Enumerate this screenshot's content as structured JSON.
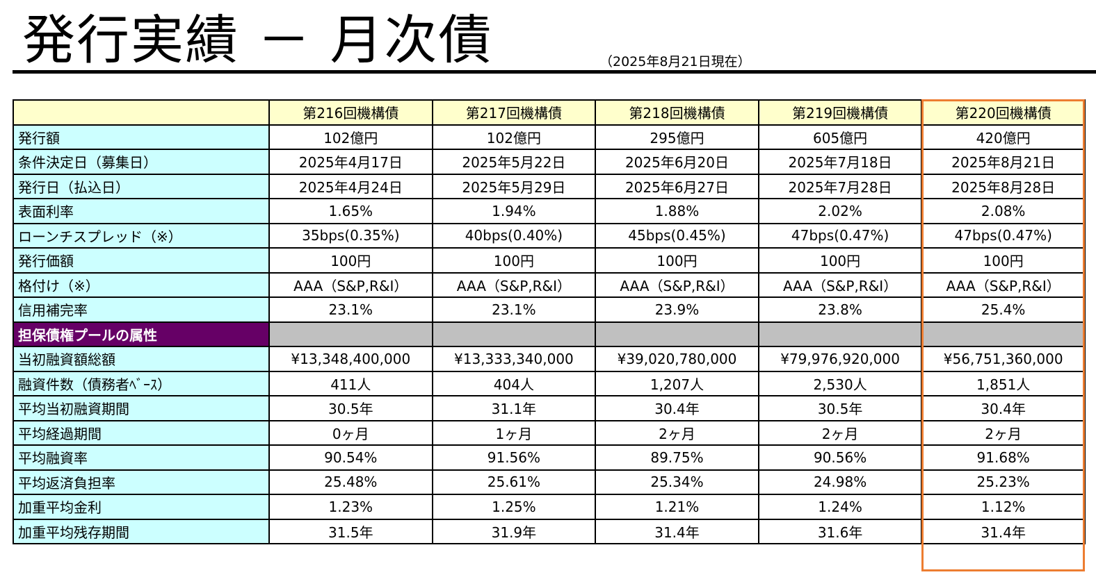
{
  "page": {
    "title": "発行実績 － 月次債",
    "as_of": "（2025年8月21日現在）"
  },
  "columns": [
    "第216回機構債",
    "第217回機構債",
    "第218回機構債",
    "第219回機構債",
    "第220回機構債"
  ],
  "bond_rows": [
    {
      "label": "発行額",
      "values": [
        "102億円",
        "102億円",
        "295億円",
        "605億円",
        "420億円"
      ]
    },
    {
      "label": "条件決定日（募集日）",
      "values": [
        "2025年4月17日",
        "2025年5月22日",
        "2025年6月20日",
        "2025年7月18日",
        "2025年8月21日"
      ]
    },
    {
      "label": "発行日（払込日）",
      "values": [
        "2025年4月24日",
        "2025年5月29日",
        "2025年6月27日",
        "2025年7月28日",
        "2025年8月28日"
      ]
    },
    {
      "label": "表面利率",
      "values": [
        "1.65%",
        "1.94%",
        "1.88%",
        "2.02%",
        "2.08%"
      ]
    },
    {
      "label": "ローンチスプレッド（※）",
      "values": [
        "35bps(0.35%)",
        "40bps(0.40%)",
        "45bps(0.45%)",
        "47bps(0.47%)",
        "47bps(0.47%)"
      ]
    },
    {
      "label": "発行価額",
      "values": [
        "100円",
        "100円",
        "100円",
        "100円",
        "100円"
      ]
    },
    {
      "label": "格付け（※）",
      "values": [
        "AAA（S&P,R&I）",
        "AAA（S&P,R&I）",
        "AAA（S&P,R&I）",
        "AAA（S&P,R&I）",
        "AAA（S&P,R&I）"
      ]
    },
    {
      "label": "信用補完率",
      "values": [
        "23.1%",
        "23.1%",
        "23.9%",
        "23.8%",
        "25.4%"
      ]
    }
  ],
  "section_header": "担保債権プールの属性",
  "pool_rows": [
    {
      "label": "当初融資額総額",
      "values": [
        "¥13,348,400,000",
        "¥13,333,340,000",
        "¥39,020,780,000",
        "¥79,976,920,000",
        "¥56,751,360,000"
      ]
    },
    {
      "label": "融資件数（債務者ﾍﾞｰｽ）",
      "values": [
        "411人",
        "404人",
        "1,207人",
        "2,530人",
        "1,851人"
      ]
    },
    {
      "label": "平均当初融資期間",
      "values": [
        "30.5年",
        "31.1年",
        "30.4年",
        "30.5年",
        "30.4年"
      ]
    },
    {
      "label": "平均経過期間",
      "values": [
        "0ヶ月",
        "1ヶ月",
        "2ヶ月",
        "2ヶ月",
        "2ヶ月"
      ]
    },
    {
      "label": "平均融資率",
      "values": [
        "90.54%",
        "91.56%",
        "89.75%",
        "90.56%",
        "91.68%"
      ]
    },
    {
      "label": "平均返済負担率",
      "values": [
        "25.48%",
        "25.61%",
        "25.34%",
        "24.98%",
        "25.23%"
      ]
    },
    {
      "label": "加重平均金利",
      "values": [
        "1.23%",
        "1.25%",
        "1.21%",
        "1.24%",
        "1.12%"
      ]
    },
    {
      "label": "加重平均残存期間",
      "values": [
        "31.5年",
        "31.9年",
        "31.4年",
        "31.6年",
        "31.4年"
      ]
    }
  ],
  "colors": {
    "header_bg": "#ffffcc",
    "label_bg": "#ccffff",
    "section_bg": "#660066",
    "section_fill": "#c0c0c0",
    "highlight_border": "#ed7d31"
  }
}
